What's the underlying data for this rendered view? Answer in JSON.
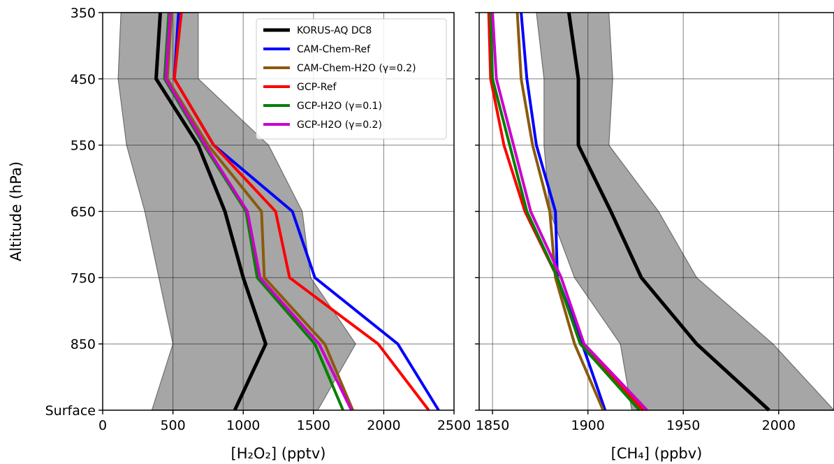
{
  "chart_data": [
    {
      "type": "line",
      "xlabel": "[H₂O₂] (pptv)",
      "ylabel": "Altitude (hPa)",
      "xlim": [
        0,
        2500
      ],
      "xticks": [
        "0",
        "500",
        "1000",
        "1500",
        "2000",
        "2500"
      ],
      "y_categories": [
        "Surface",
        "850",
        "750",
        "650",
        "550",
        "450",
        "350"
      ],
      "grid": true,
      "legend_position": "upper-center",
      "shade": {
        "min": [
          350,
          500,
          400,
          300,
          170,
          110,
          130
        ],
        "max": [
          1530,
          1800,
          1480,
          1420,
          1180,
          680,
          680
        ]
      },
      "series": [
        {
          "name": "KORUS-AQ DC8",
          "color": "#000000",
          "values": [
            940,
            1160,
            1000,
            870,
            680,
            380,
            410
          ]
        },
        {
          "name": "CAM-Chem-Ref",
          "color": "#0000ff",
          "values": [
            2390,
            2100,
            1510,
            1350,
            790,
            510,
            540
          ]
        },
        {
          "name": "CAM-Chem-H2O (γ=0.2)",
          "color": "#8b5a0f",
          "values": [
            1780,
            1580,
            1150,
            1130,
            750,
            460,
            490
          ]
        },
        {
          "name": "GCP-Ref",
          "color": "#ff0000",
          "values": [
            2320,
            1960,
            1330,
            1230,
            790,
            510,
            560
          ]
        },
        {
          "name": "GCP-H2O (γ=0.1)",
          "color": "#008000",
          "values": [
            1710,
            1510,
            1100,
            1020,
            720,
            440,
            470
          ]
        },
        {
          "name": "GCP-H2O (γ=0.2)",
          "color": "#cc00cc",
          "values": [
            1770,
            1540,
            1120,
            1030,
            730,
            450,
            480
          ]
        }
      ]
    },
    {
      "type": "line",
      "xlabel": "[CH₄] (ppbv)",
      "xlim": [
        1843,
        2029
      ],
      "xticks": [
        "1850",
        "1900",
        "1950",
        "2000"
      ],
      "y_categories": [
        "Surface",
        "850",
        "750",
        "650",
        "550",
        "450",
        "350"
      ],
      "grid": true,
      "shade": {
        "min": [
          1923,
          1917,
          1893,
          1880,
          1877,
          1877,
          1873
        ],
        "max": [
          2029,
          1997,
          1957,
          1937,
          1911,
          1913,
          1911
        ]
      },
      "series": [
        {
          "name": "KORUS-AQ DC8",
          "color": "#000000",
          "values": [
            1995,
            1957,
            1928,
            1912,
            1895,
            1895,
            1890
          ]
        },
        {
          "name": "CAM-Chem-Ref",
          "color": "#0000ff",
          "values": [
            1909,
            1897,
            1884,
            1883,
            1873,
            1868,
            1865
          ]
        },
        {
          "name": "CAM-Chem-H2O (γ=0.2)",
          "color": "#8b5a0f",
          "values": [
            1908,
            1893,
            1883,
            1880,
            1871,
            1865,
            1863
          ]
        },
        {
          "name": "GCP-Ref",
          "color": "#ff0000",
          "values": [
            1929,
            1896,
            1884,
            1867,
            1856,
            1849,
            1848
          ]
        },
        {
          "name": "GCP-H2O (γ=0.1)",
          "color": "#008000",
          "values": [
            1927,
            1896,
            1884,
            1868,
            1859,
            1850,
            1849
          ]
        },
        {
          "name": "GCP-H2O (γ=0.2)",
          "color": "#cc00cc",
          "values": [
            1931,
            1898,
            1886,
            1870,
            1861,
            1852,
            1850
          ]
        }
      ]
    }
  ]
}
